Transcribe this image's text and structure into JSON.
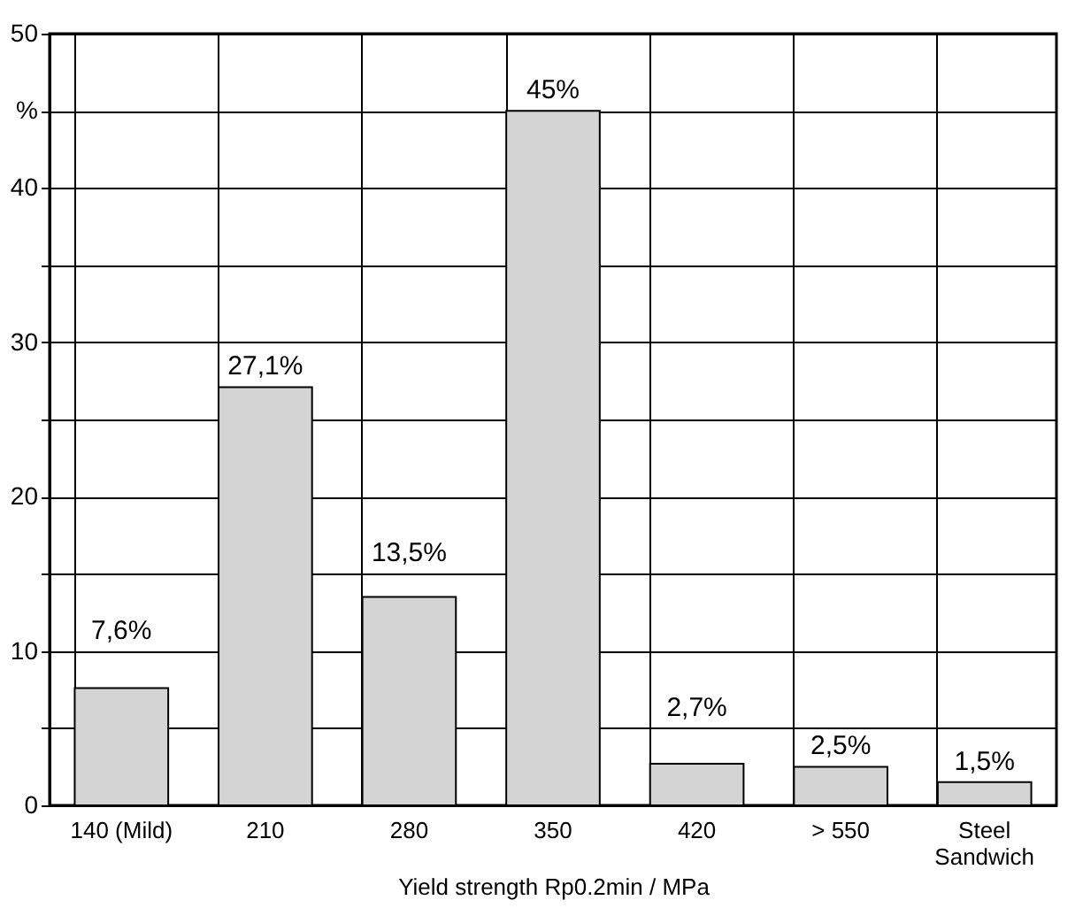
{
  "chart_data": {
    "type": "bar",
    "xlabel": "Yield strength Rp0.2min / MPa",
    "categories": [
      "140 (Mild)",
      "210",
      "280",
      "350",
      "420",
      "> 550",
      "Steel Sandwich"
    ],
    "values": [
      7.6,
      27.1,
      13.5,
      45,
      2.7,
      2.5,
      1.5
    ],
    "value_labels": [
      "7,6%",
      "27,1%",
      "13,5%",
      "45%",
      "2,7%",
      "2,5%",
      "1,5%"
    ],
    "color": "#d4d4d4",
    "ylim": [
      0,
      50
    ],
    "yticks": [
      0,
      {
        "value": 5,
        "label": null
      },
      10,
      {
        "value": 15,
        "label": null
      },
      20,
      {
        "value": 25,
        "label": null
      },
      30,
      {
        "value": 35,
        "label": null
      },
      40,
      {
        "value": 45,
        "label": "%"
      },
      50
    ],
    "grid": true
  }
}
